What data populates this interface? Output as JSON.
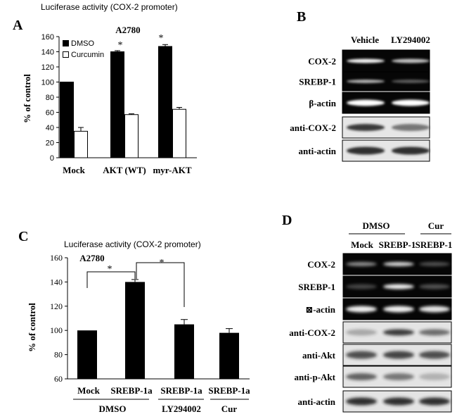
{
  "panels": {
    "A": {
      "letter": "A",
      "caption": "Luciferase activity (COX-2 promoter)",
      "cell_line": "A2780",
      "ylabel": "% of control",
      "ticks": [
        "0",
        "20",
        "40",
        "60",
        "80",
        "100",
        "120",
        "140",
        "160"
      ],
      "legend": [
        "DMSO",
        "Curcumin"
      ],
      "groups": [
        "Mock",
        "AKT (WT)",
        "myr-AKT"
      ],
      "sig": [
        "*",
        "*"
      ]
    },
    "B": {
      "letter": "B",
      "lanes": [
        "Vehicle",
        "LY294002"
      ],
      "rows": [
        "COX-2",
        "SREBP-1",
        "β-actin",
        "anti-COX-2",
        "anti-actin"
      ]
    },
    "C": {
      "letter": "C",
      "caption": "Luciferase activity (COX-2 promoter)",
      "cell_line": "A2780",
      "ylabel": "% of control",
      "ticks": [
        "60",
        "80",
        "100",
        "120",
        "140",
        "160"
      ],
      "categories": [
        "Mock",
        "SREBP-1a",
        "SREBP-1a",
        "SREBP-1a"
      ],
      "treatments": [
        "DMSO",
        "LY294002",
        "Cur"
      ],
      "sig": [
        "*",
        "*"
      ]
    },
    "D": {
      "letter": "D",
      "groups": [
        "DMSO",
        "Cur"
      ],
      "lanes": [
        "Mock",
        "SREBP-1",
        "SREBP-1"
      ],
      "rows": [
        "COX-2",
        "SREBP-1",
        "⊠-actin",
        "anti-COX-2",
        "anti-Akt",
        "anti-p-Akt",
        "anti-actin"
      ]
    }
  },
  "chart_data": [
    {
      "type": "bar",
      "title": "A2780",
      "ylabel": "% of control",
      "ylim": [
        0,
        160
      ],
      "categories": [
        "Mock",
        "AKT (WT)",
        "myr-AKT"
      ],
      "series": [
        {
          "name": "DMSO",
          "values": [
            100,
            140,
            147
          ],
          "errors": [
            0,
            1.5,
            2.5
          ],
          "color": "#000000"
        },
        {
          "name": "Curcumin",
          "values": [
            35,
            57,
            64
          ],
          "errors": [
            5,
            1,
            2.5
          ],
          "color": "#ffffff"
        }
      ]
    },
    {
      "type": "bar",
      "title": "A2780",
      "ylabel": "% of control",
      "ylim": [
        60,
        160
      ],
      "categories": [
        "Mock",
        "SREBP-1a",
        "SREBP-1a",
        "SREBP-1a"
      ],
      "series": [
        {
          "values": [
            100,
            140,
            105,
            98
          ],
          "errors": [
            0,
            2,
            4,
            3.5
          ],
          "color": "#000000"
        }
      ]
    }
  ]
}
